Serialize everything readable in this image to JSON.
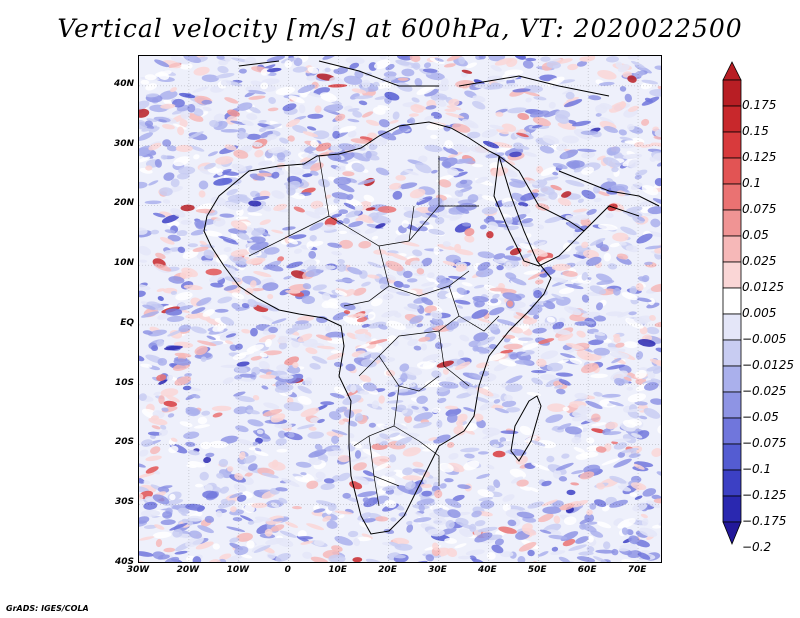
{
  "title": "Vertical velocity [m/s] at 600hPa, VT: 2020022500",
  "credit": "GrADS: IGES/COLA",
  "map": {
    "lat_labels": [
      "40N",
      "30N",
      "20N",
      "10N",
      "EQ",
      "10S",
      "20S",
      "30S",
      "40S"
    ],
    "lon_labels": [
      "30W",
      "20W",
      "10W",
      "0",
      "10E",
      "20E",
      "30E",
      "40E",
      "50E",
      "60E",
      "70E"
    ],
    "lon_range": [
      -30,
      75
    ],
    "lat_range": [
      -40,
      45
    ]
  },
  "colorbar": {
    "labels": [
      "0.175",
      "0.15",
      "0.125",
      "0.1",
      "0.075",
      "0.05",
      "0.025",
      "0.0125",
      "0.005",
      "−0.005",
      "−0.0125",
      "−0.025",
      "−0.05",
      "−0.075",
      "−0.1",
      "−0.125",
      "−0.175",
      "−0.2"
    ],
    "colors": [
      "#b81e24",
      "#c8282c",
      "#d83a3c",
      "#e25454",
      "#ea7272",
      "#f09494",
      "#f6b8b8",
      "#fad6d6",
      "#ffffff",
      "#e4e6f8",
      "#c8ccf2",
      "#aab0ec",
      "#8e94e4",
      "#7076dc",
      "#545cd2",
      "#3c40c4",
      "#2a28b0"
    ]
  }
}
